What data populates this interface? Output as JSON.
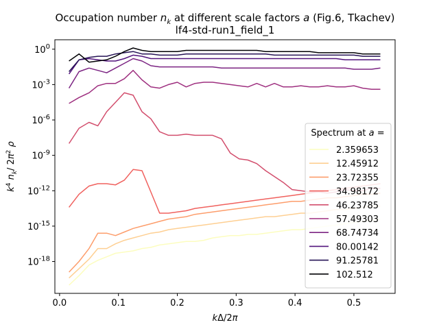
{
  "chart_data": {
    "type": "line",
    "title": "Occupation number n_k at different scale factors a (Fig.6, Tkachev)",
    "subtitle": "lf4-std-run1_field_1",
    "xlabel": "kΔ/2π",
    "ylabel": "k⁴ n_k/ 2π² ρ",
    "xlim": [
      -0.008,
      0.57
    ],
    "ylim_log10": [
      -20.7,
      0.8
    ],
    "yscale": "log",
    "grid": false,
    "legend_title": "Spectrum at a =",
    "legend_placement": "lower-right",
    "x_ticks": [
      0.0,
      0.1,
      0.2,
      0.3,
      0.4,
      0.5
    ],
    "x_tick_labels": [
      "0.0",
      "0.1",
      "0.2",
      "0.3",
      "0.4",
      "0.5"
    ],
    "y_ticks_log10": [
      0,
      -3,
      -6,
      -9,
      -12,
      -15,
      -18
    ],
    "y_tick_labels": [
      "10^0",
      "10^-3",
      "10^-6",
      "10^-9",
      "10^-12",
      "10^-15",
      "10^-18"
    ],
    "x": [
      0.016,
      0.033,
      0.05,
      0.065,
      0.08,
      0.095,
      0.11,
      0.125,
      0.14,
      0.155,
      0.17,
      0.185,
      0.2,
      0.215,
      0.23,
      0.245,
      0.26,
      0.275,
      0.29,
      0.305,
      0.32,
      0.335,
      0.35,
      0.365,
      0.38,
      0.395,
      0.41,
      0.425,
      0.44,
      0.455,
      0.47,
      0.485,
      0.5,
      0.515,
      0.53,
      0.545
    ],
    "series": [
      {
        "name": "2.359653",
        "color": "#fcfdbf",
        "log10_values": [
          -20.0,
          -19.2,
          -18.3,
          -17.9,
          -17.6,
          -17.3,
          -17.2,
          -17.1,
          -16.9,
          -16.8,
          -16.6,
          -16.5,
          -16.4,
          -16.3,
          -16.3,
          -16.2,
          -16.0,
          -15.9,
          -15.8,
          -15.8,
          -15.7,
          -15.7,
          -15.6,
          -15.5,
          -15.4,
          -15.3,
          -15.3,
          -15.2,
          -15.1,
          -15.0,
          -14.9,
          -14.8,
          -14.7,
          -14.6,
          -14.5,
          -14.4
        ]
      },
      {
        "name": "12.45912",
        "color": "#fecf92",
        "log10_values": [
          -19.4,
          -18.6,
          -17.8,
          -16.9,
          -16.9,
          -16.5,
          -16.2,
          -16.0,
          -15.8,
          -15.6,
          -15.5,
          -15.3,
          -15.2,
          -15.1,
          -15.0,
          -14.9,
          -14.8,
          -14.7,
          -14.6,
          -14.5,
          -14.4,
          -14.3,
          -14.2,
          -14.2,
          -14.1,
          -14.0,
          -13.9,
          -13.9,
          -13.8,
          -13.7,
          -13.6,
          -13.6,
          -13.5,
          -13.4,
          -13.3,
          -13.3
        ]
      },
      {
        "name": "23.72355",
        "color": "#fd9d6b",
        "log10_values": [
          -18.9,
          -18.0,
          -16.9,
          -15.6,
          -15.6,
          -15.8,
          -15.5,
          -15.2,
          -15.0,
          -14.8,
          -14.6,
          -14.4,
          -14.3,
          -14.2,
          -14.0,
          -13.9,
          -13.8,
          -13.7,
          -13.6,
          -13.5,
          -13.4,
          -13.3,
          -13.2,
          -13.1,
          -13.0,
          -12.9,
          -12.9,
          -12.8,
          -12.7,
          -12.6,
          -12.6,
          -12.5,
          -12.4,
          -12.3,
          -12.3,
          -12.2
        ]
      },
      {
        "name": "34.98172",
        "color": "#f0605d",
        "log10_values": [
          -13.4,
          -12.3,
          -11.6,
          -11.4,
          -11.4,
          -11.5,
          -11.1,
          -10.2,
          -10.3,
          -12.1,
          -13.9,
          -13.9,
          -13.8,
          -13.7,
          -13.5,
          -13.4,
          -13.3,
          -13.2,
          -13.1,
          -13.0,
          -12.9,
          -12.8,
          -12.7,
          -12.6,
          -12.5,
          -12.4,
          -12.3,
          -12.2,
          -12.1,
          -12.0,
          -11.9,
          -11.8,
          -11.7,
          -11.6,
          -11.5,
          -11.4
        ]
      },
      {
        "name": "46.23785",
        "color": "#d24d6c",
        "log10_values": [
          -8.0,
          -6.7,
          -6.2,
          -6.5,
          -5.3,
          -4.5,
          -3.7,
          -3.9,
          -5.3,
          -5.9,
          -7.0,
          -7.3,
          -7.3,
          -7.2,
          -7.3,
          -7.3,
          -7.3,
          -7.6,
          -8.8,
          -9.3,
          -9.4,
          -9.7,
          -10.3,
          -10.8,
          -11.3,
          -11.9,
          -12.0,
          -12.1,
          -12.1,
          -12.2,
          -12.1,
          -11.9,
          -12.0,
          -12.0,
          -11.8,
          -11.8
        ]
      },
      {
        "name": "57.49303",
        "color": "#9e2f7f",
        "log10_values": [
          -4.6,
          -4.1,
          -3.7,
          -3.1,
          -2.9,
          -2.9,
          -2.5,
          -1.8,
          -2.6,
          -3.2,
          -3.3,
          -3.0,
          -2.8,
          -3.2,
          -2.9,
          -2.8,
          -2.8,
          -2.9,
          -3.0,
          -3.1,
          -3.2,
          -2.9,
          -3.2,
          -2.9,
          -3.2,
          -3.2,
          -3.1,
          -3.2,
          -3.2,
          -3.1,
          -3.2,
          -3.2,
          -3.1,
          -3.3,
          -3.4,
          -3.4
        ]
      },
      {
        "name": "68.74734",
        "color": "#7b2382",
        "log10_values": [
          -3.3,
          -1.9,
          -1.6,
          -1.8,
          -2.0,
          -1.6,
          -1.2,
          -0.8,
          -1.0,
          -1.4,
          -1.5,
          -1.5,
          -1.5,
          -1.5,
          -1.5,
          -1.5,
          -1.5,
          -1.6,
          -1.6,
          -1.6,
          -1.6,
          -1.6,
          -1.6,
          -1.6,
          -1.6,
          -1.6,
          -1.6,
          -1.6,
          -1.6,
          -1.6,
          -1.6,
          -1.6,
          -1.7,
          -1.7,
          -1.7,
          -1.6
        ]
      },
      {
        "name": "80.00142",
        "color": "#51127c",
        "log10_values": [
          -2.1,
          -0.9,
          -0.8,
          -0.9,
          -1.0,
          -1.0,
          -0.8,
          -0.5,
          -0.6,
          -0.8,
          -0.8,
          -0.8,
          -0.8,
          -0.8,
          -0.8,
          -0.8,
          -0.8,
          -0.8,
          -0.8,
          -0.8,
          -0.8,
          -0.8,
          -0.8,
          -0.8,
          -0.8,
          -0.8,
          -0.8,
          -0.8,
          -0.8,
          -0.8,
          -0.8,
          -0.9,
          -0.9,
          -0.9,
          -0.9,
          -0.9
        ]
      },
      {
        "name": "91.25781",
        "color": "#251255",
        "log10_values": [
          -1.9,
          -0.9,
          -0.7,
          -0.6,
          -0.6,
          -0.4,
          -0.3,
          -0.2,
          -0.4,
          -0.4,
          -0.5,
          -0.5,
          -0.5,
          -0.4,
          -0.4,
          -0.4,
          -0.4,
          -0.4,
          -0.4,
          -0.4,
          -0.4,
          -0.4,
          -0.4,
          -0.5,
          -0.5,
          -0.5,
          -0.5,
          -0.5,
          -0.5,
          -0.5,
          -0.5,
          -0.5,
          -0.5,
          -0.6,
          -0.6,
          -0.6
        ]
      },
      {
        "name": "102.512",
        "color": "#000004",
        "log10_values": [
          -1.0,
          -0.4,
          -1.1,
          -1.0,
          -0.9,
          -0.6,
          -0.2,
          0.1,
          -0.1,
          -0.2,
          -0.2,
          -0.2,
          -0.2,
          -0.1,
          -0.1,
          -0.1,
          -0.1,
          -0.1,
          -0.1,
          -0.1,
          -0.1,
          -0.1,
          -0.2,
          -0.2,
          -0.2,
          -0.2,
          -0.2,
          -0.2,
          -0.3,
          -0.3,
          -0.3,
          -0.3,
          -0.3,
          -0.4,
          -0.4,
          -0.4
        ]
      }
    ]
  }
}
